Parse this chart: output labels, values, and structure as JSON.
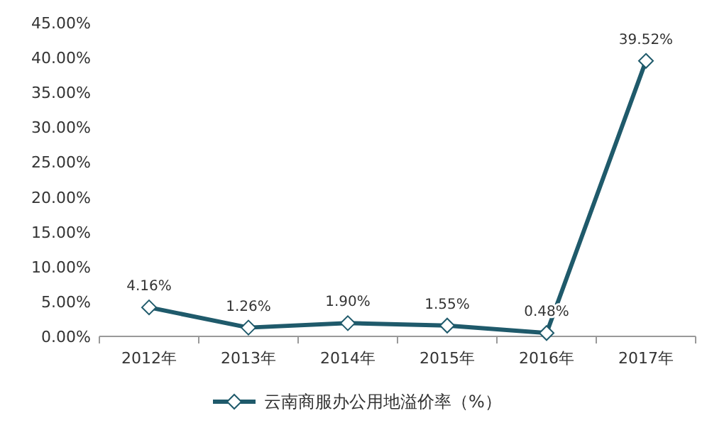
{
  "chart_data": {
    "type": "line",
    "categories": [
      "2012年",
      "2013年",
      "2014年",
      "2015年",
      "2016年",
      "2017年"
    ],
    "series": [
      {
        "name": "云南商服办公用地溢价率（%）",
        "color": "#1f5a6b",
        "values": [
          4.16,
          1.26,
          1.9,
          1.55,
          0.48,
          39.52
        ],
        "value_labels": [
          "4.16%",
          "1.26%",
          "1.90%",
          "1.55%",
          "0.48%",
          "39.52%"
        ]
      }
    ],
    "ylim": [
      0,
      45
    ],
    "yticks": [
      {
        "value": 0,
        "label": "0.00%"
      },
      {
        "value": 5,
        "label": "5.00%"
      },
      {
        "value": 10,
        "label": "10.00%"
      },
      {
        "value": 15,
        "label": "15.00%"
      },
      {
        "value": 20,
        "label": "20.00%"
      },
      {
        "value": 25,
        "label": "25.00%"
      },
      {
        "value": 30,
        "label": "30.00%"
      },
      {
        "value": 35,
        "label": "35.00%"
      },
      {
        "value": 40,
        "label": "40.00%"
      },
      {
        "value": 45,
        "label": "45.00%"
      }
    ],
    "marker": "diamond",
    "line_style": "solid",
    "legend": "bottom",
    "grid": false
  }
}
